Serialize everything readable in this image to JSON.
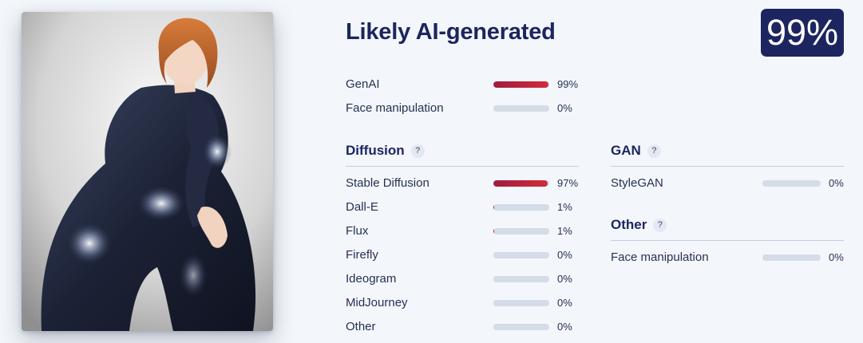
{
  "verdict": "Likely AI-generated",
  "score": "99%",
  "summary": [
    {
      "label": "GenAI",
      "value": 0.99,
      "pct": "99%"
    },
    {
      "label": "Face manipulation",
      "value": 0.0,
      "pct": "0%"
    }
  ],
  "diffusion": {
    "title": "Diffusion",
    "help": "?",
    "items": [
      {
        "label": "Stable Diffusion",
        "value": 0.97,
        "pct": "97%"
      },
      {
        "label": "Dall-E",
        "value": 0.01,
        "pct": "1%"
      },
      {
        "label": "Flux",
        "value": 0.01,
        "pct": "1%"
      },
      {
        "label": "Firefly",
        "value": 0.0,
        "pct": "0%"
      },
      {
        "label": "Ideogram",
        "value": 0.0,
        "pct": "0%"
      },
      {
        "label": "MidJourney",
        "value": 0.0,
        "pct": "0%"
      },
      {
        "label": "Other",
        "value": 0.0,
        "pct": "0%"
      }
    ]
  },
  "gan": {
    "title": "GAN",
    "help": "?",
    "items": [
      {
        "label": "StyleGAN",
        "value": 0.0,
        "pct": "0%"
      }
    ]
  },
  "other": {
    "title": "Other",
    "help": "?",
    "items": [
      {
        "label": "Face manipulation",
        "value": 0.0,
        "pct": "0%"
      }
    ]
  },
  "colors": {
    "accent_navy": "#1d2560",
    "bar_fill": "#c0233d",
    "bar_track": "#d5dce8",
    "background": "#f3f7fb"
  }
}
